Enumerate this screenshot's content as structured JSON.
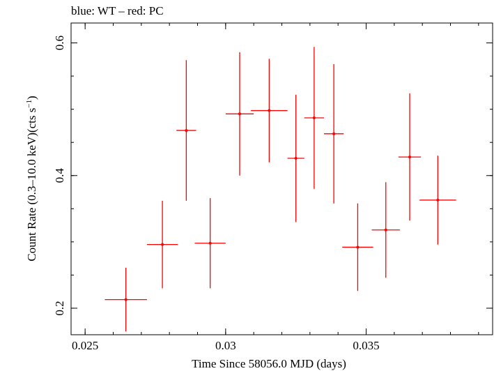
{
  "chart_data": {
    "type": "scatter",
    "title": "blue: WT – red: PC",
    "xlabel": "Time Since 58056.0 MJD (days)",
    "ylabel": "Count Rate (0.3–10.0 keV)(cts s",
    "ylabel_sup": "−1",
    "ylabel_tail": ")",
    "xlim": [
      0.0245,
      0.0395
    ],
    "ylim": [
      0.16,
      0.63
    ],
    "x_ticks": [
      0.025,
      0.03,
      0.035
    ],
    "x_tick_labels": [
      "0.025",
      "0.03",
      "0.035"
    ],
    "y_ticks": [
      0.2,
      0.4,
      0.6
    ],
    "y_tick_labels": [
      "0.2",
      "0.4",
      "0.6"
    ],
    "grid": false,
    "series": [
      {
        "color": "#ff0000",
        "points": [
          {
            "x": 0.02645,
            "xerr": 0.00075,
            "y": 0.213,
            "yerr_lo": 0.048,
            "yerr_hi": 0.048
          },
          {
            "x": 0.02775,
            "xerr": 0.00055,
            "y": 0.296,
            "yerr_lo": 0.066,
            "yerr_hi": 0.066
          },
          {
            "x": 0.0286,
            "xerr": 0.00035,
            "y": 0.468,
            "yerr_lo": 0.106,
            "yerr_hi": 0.106
          },
          {
            "x": 0.02945,
            "xerr": 0.00055,
            "y": 0.298,
            "yerr_lo": 0.068,
            "yerr_hi": 0.068
          },
          {
            "x": 0.0305,
            "xerr": 0.0005,
            "y": 0.493,
            "yerr_lo": 0.093,
            "yerr_hi": 0.093
          },
          {
            "x": 0.03155,
            "xerr": 0.00065,
            "y": 0.498,
            "yerr_lo": 0.078,
            "yerr_hi": 0.078
          },
          {
            "x": 0.0325,
            "xerr": 0.0003,
            "y": 0.426,
            "yerr_lo": 0.096,
            "yerr_hi": 0.096
          },
          {
            "x": 0.03315,
            "xerr": 0.00035,
            "y": 0.487,
            "yerr_lo": 0.107,
            "yerr_hi": 0.107
          },
          {
            "x": 0.03385,
            "xerr": 0.00035,
            "y": 0.463,
            "yerr_lo": 0.105,
            "yerr_hi": 0.105
          },
          {
            "x": 0.0347,
            "xerr": 0.00055,
            "y": 0.292,
            "yerr_lo": 0.066,
            "yerr_hi": 0.066
          },
          {
            "x": 0.0357,
            "xerr": 0.0005,
            "y": 0.318,
            "yerr_lo": 0.072,
            "yerr_hi": 0.072
          },
          {
            "x": 0.03655,
            "xerr": 0.0004,
            "y": 0.428,
            "yerr_lo": 0.096,
            "yerr_hi": 0.096
          },
          {
            "x": 0.03755,
            "xerr": 0.00065,
            "y": 0.363,
            "yerr_lo": 0.067,
            "yerr_hi": 0.067
          }
        ]
      }
    ]
  }
}
